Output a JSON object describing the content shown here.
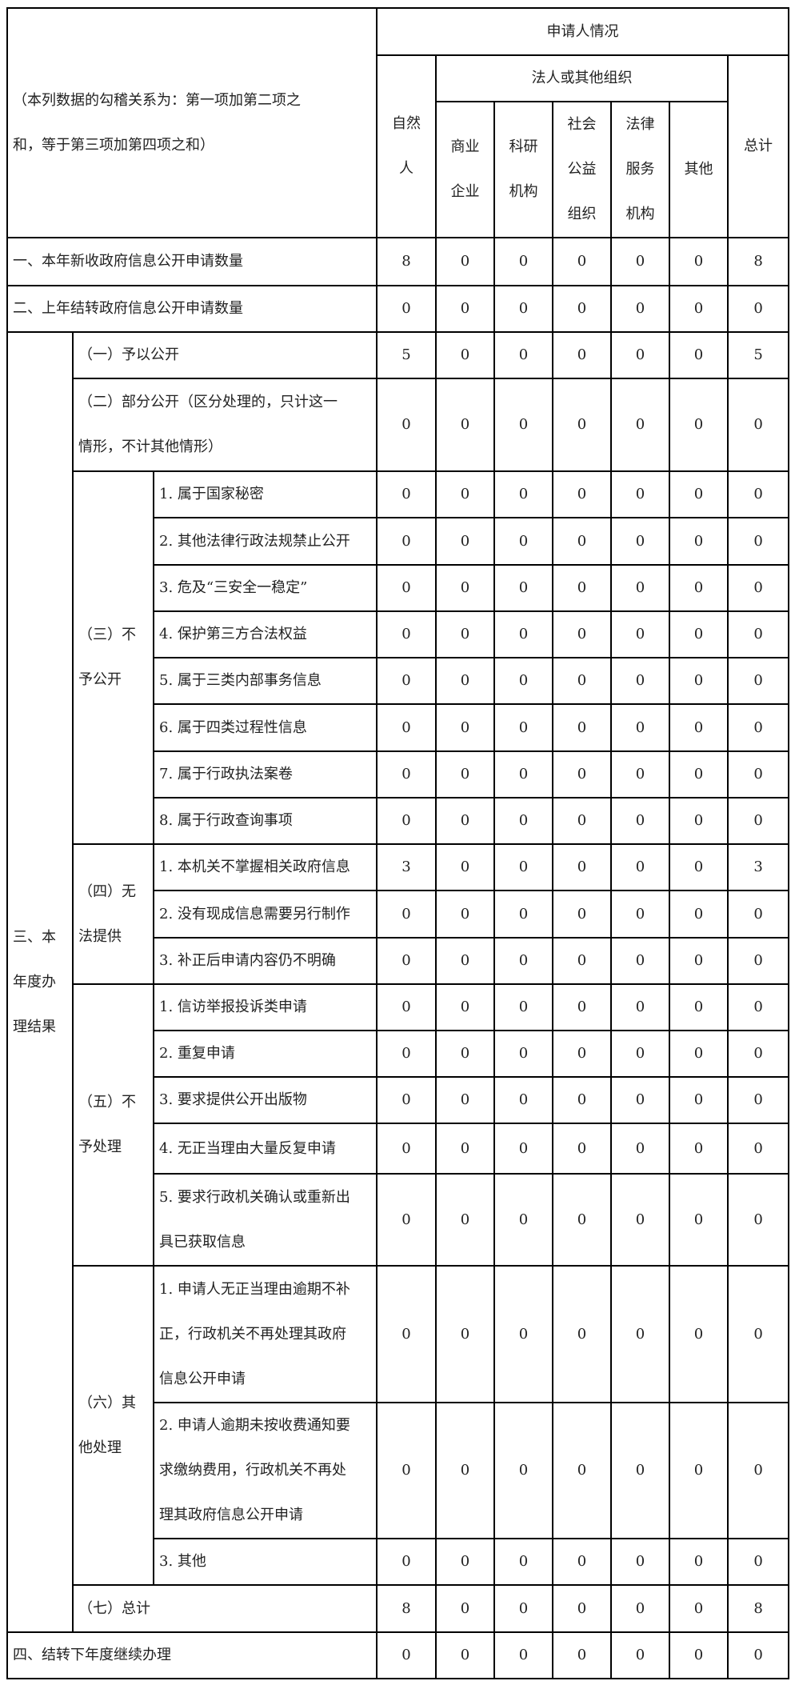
{
  "header": {
    "corner_note": [
      "（本列数据的勾稽关系为：第一项加第二项之",
      "和，等于第三项加第四项之和）"
    ],
    "applicant_situation": "申请人情况",
    "natural_person": [
      "自然",
      "人"
    ],
    "legal_org": "法人或其他组织",
    "org_columns": [
      [
        "商业",
        "企业"
      ],
      [
        "科研",
        "机构"
      ],
      [
        "社会",
        "公益",
        "组织"
      ],
      [
        "法律",
        "服务",
        "机构"
      ],
      [
        "其他"
      ]
    ],
    "total": "总计"
  },
  "rows": [
    {
      "label": [
        "一、本年新收政府信息公开申请数量"
      ],
      "values": [
        8,
        0,
        0,
        0,
        0,
        0,
        8
      ]
    },
    {
      "label": [
        "二、上年结转政府信息公开申请数量"
      ],
      "values": [
        0,
        0,
        0,
        0,
        0,
        0,
        0
      ]
    }
  ],
  "section3": {
    "label": [
      "三、本",
      "年度办",
      "理结果"
    ],
    "rows_single": [
      {
        "label": [
          "（一）予以公开"
        ],
        "values": [
          5,
          0,
          0,
          0,
          0,
          0,
          5
        ]
      },
      {
        "label": [
          "（二）部分公开（区分处理的，只计这一",
          "情形，不计其他情形）"
        ],
        "values": [
          0,
          0,
          0,
          0,
          0,
          0,
          0
        ]
      }
    ],
    "groups": [
      {
        "label": [
          "（三）不",
          "予公开"
        ],
        "items": [
          {
            "label": [
              "1. 属于国家秘密"
            ],
            "values": [
              0,
              0,
              0,
              0,
              0,
              0,
              0
            ]
          },
          {
            "label": [
              "2. 其他法律行政法规禁止公开"
            ],
            "values": [
              0,
              0,
              0,
              0,
              0,
              0,
              0
            ]
          },
          {
            "label": [
              "3. 危及“三安全一稳定”"
            ],
            "values": [
              0,
              0,
              0,
              0,
              0,
              0,
              0
            ]
          },
          {
            "label": [
              "4. 保护第三方合法权益"
            ],
            "values": [
              0,
              0,
              0,
              0,
              0,
              0,
              0
            ]
          },
          {
            "label": [
              "5. 属于三类内部事务信息"
            ],
            "values": [
              0,
              0,
              0,
              0,
              0,
              0,
              0
            ]
          },
          {
            "label": [
              "6. 属于四类过程性信息"
            ],
            "values": [
              0,
              0,
              0,
              0,
              0,
              0,
              0
            ]
          },
          {
            "label": [
              "7. 属于行政执法案卷"
            ],
            "values": [
              0,
              0,
              0,
              0,
              0,
              0,
              0
            ]
          },
          {
            "label": [
              "8. 属于行政查询事项"
            ],
            "values": [
              0,
              0,
              0,
              0,
              0,
              0,
              0
            ]
          }
        ]
      },
      {
        "label": [
          "（四）无",
          "法提供"
        ],
        "items": [
          {
            "label": [
              "1. 本机关不掌握相关政府信息"
            ],
            "values": [
              3,
              0,
              0,
              0,
              0,
              0,
              3
            ]
          },
          {
            "label": [
              "2. 没有现成信息需要另行制作"
            ],
            "values": [
              0,
              0,
              0,
              0,
              0,
              0,
              0
            ]
          },
          {
            "label": [
              "3. 补正后申请内容仍不明确"
            ],
            "values": [
              0,
              0,
              0,
              0,
              0,
              0,
              0
            ]
          }
        ]
      },
      {
        "label": [
          "（五）不",
          "予处理"
        ],
        "items": [
          {
            "label": [
              "1. 信访举报投诉类申请"
            ],
            "values": [
              0,
              0,
              0,
              0,
              0,
              0,
              0
            ]
          },
          {
            "label": [
              "2. 重复申请"
            ],
            "values": [
              0,
              0,
              0,
              0,
              0,
              0,
              0
            ]
          },
          {
            "label": [
              "3. 要求提供公开出版物"
            ],
            "values": [
              0,
              0,
              0,
              0,
              0,
              0,
              0
            ]
          },
          {
            "label": [
              "4. 无正当理由大量反复申请"
            ],
            "values": [
              0,
              0,
              0,
              0,
              0,
              0,
              0
            ]
          },
          {
            "label": [
              "5. 要求行政机关确认或重新出",
              "具已获取信息"
            ],
            "values": [
              0,
              0,
              0,
              0,
              0,
              0,
              0
            ]
          }
        ]
      },
      {
        "label": [
          "（六）其",
          "他处理"
        ],
        "items": [
          {
            "label": [
              "1. 申请人无正当理由逾期不补",
              "正，行政机关不再处理其政府",
              "信息公开申请"
            ],
            "values": [
              0,
              0,
              0,
              0,
              0,
              0,
              0
            ]
          },
          {
            "label": [
              "2. 申请人逾期未按收费通知要",
              "求缴纳费用，行政机关不再处",
              "理其政府信息公开申请"
            ],
            "values": [
              0,
              0,
              0,
              0,
              0,
              0,
              0
            ]
          },
          {
            "label": [
              "3. 其他"
            ],
            "values": [
              0,
              0,
              0,
              0,
              0,
              0,
              0
            ]
          }
        ]
      }
    ],
    "total_row": {
      "label": [
        "（七）总计"
      ],
      "values": [
        8,
        0,
        0,
        0,
        0,
        0,
        8
      ]
    }
  },
  "final_row": {
    "label": [
      "四、结转下年度继续办理"
    ],
    "values": [
      0,
      0,
      0,
      0,
      0,
      0,
      0
    ]
  }
}
